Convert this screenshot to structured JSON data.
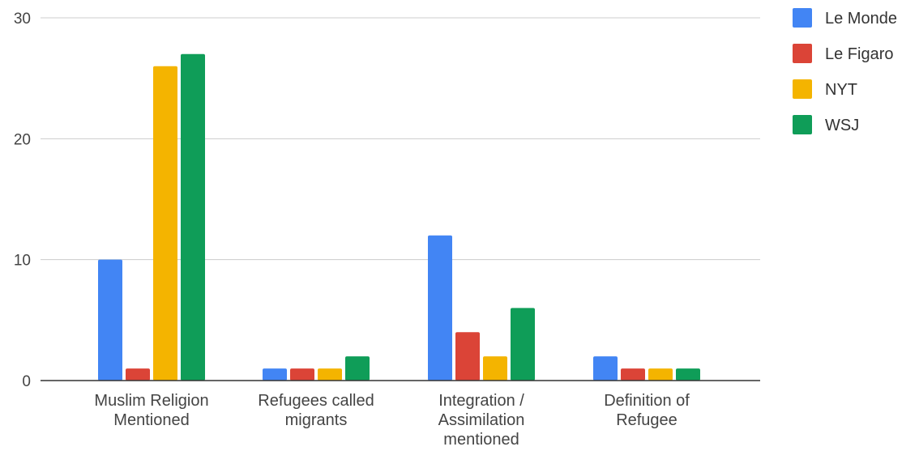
{
  "chart_data": {
    "type": "bar",
    "title": "",
    "xlabel": "",
    "ylabel": "",
    "ylim": [
      0,
      30
    ],
    "yticks": [
      0,
      10,
      20,
      30
    ],
    "grid": true,
    "legend_position": "right",
    "categories": [
      [
        "Muslim Religion",
        "Mentioned"
      ],
      [
        "Refugees called",
        "migrants"
      ],
      [
        "Integration /",
        "Assimilation",
        "mentioned"
      ],
      [
        "Definition of",
        "Refugee"
      ]
    ],
    "series": [
      {
        "name": "Le Monde",
        "color": "#4285F4",
        "values": [
          10,
          1,
          12,
          2
        ]
      },
      {
        "name": "Le Figaro",
        "color": "#DB4437",
        "values": [
          1,
          1,
          4,
          1
        ]
      },
      {
        "name": "NYT",
        "color": "#F4B400",
        "values": [
          26,
          1,
          2,
          1
        ]
      },
      {
        "name": "WSJ",
        "color": "#0F9D58",
        "values": [
          27,
          2,
          6,
          1
        ]
      }
    ],
    "gridline_color": "#cccccc",
    "axis_color": "#333333"
  }
}
